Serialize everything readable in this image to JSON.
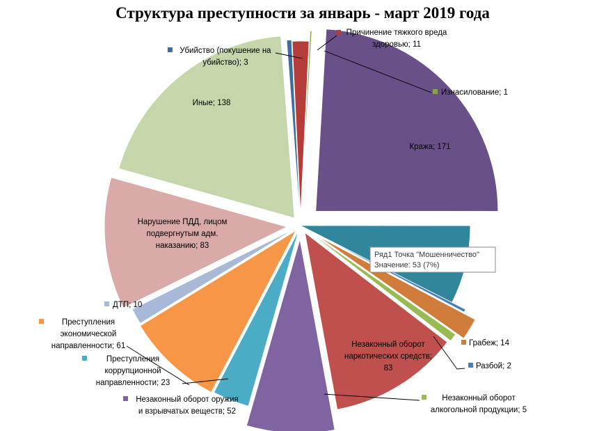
{
  "chart_data": {
    "type": "pie",
    "title": "Структура преступности за январь - март 2019 года",
    "legend": "none",
    "slices": [
      {
        "label": "Убийство (покушение на убийство)",
        "text_lines": [
          "Убийство (покушение  на",
          "убийство); 3"
        ],
        "value": 3,
        "color": "#3f6e9c"
      },
      {
        "label": "Причинение тяжкого вреда здоровью",
        "text_lines": [
          "Причинение  тяжкого вреда",
          "здоровью;  11"
        ],
        "value": 11,
        "color": "#b43d3a"
      },
      {
        "label": "Изнасилование",
        "text_lines": [
          "Изнасилование; 1"
        ],
        "value": 1,
        "color": "#8aa543"
      },
      {
        "label": "Кража",
        "text_lines": [
          "Кража; 171"
        ],
        "value": 171,
        "color": "#6a5088"
      },
      {
        "label": "Мошенничество",
        "text_lines": [],
        "value": 53,
        "color": "#31869b"
      },
      {
        "label": "Разбой",
        "text_lines": [
          "Разбой; 2"
        ],
        "value": 2,
        "color": "#4a7ebb"
      },
      {
        "label": "Грабеж",
        "text_lines": [
          "Грабеж;  14"
        ],
        "value": 14,
        "color": "#d07c3a"
      },
      {
        "label": "Незаконный оборот алкогольной продукции",
        "text_lines": [
          "Незаконный оборот",
          "алкогольной продукции;  5"
        ],
        "value": 5,
        "color": "#98b954"
      },
      {
        "label": "Незаконный оборот наркотических средств",
        "text_lines": [
          "Незаконный оборот",
          "наркотических средств;",
          "83"
        ],
        "value": 83,
        "color": "#c0504d"
      },
      {
        "label": "Незаконный оборот оружия и взрывчатых веществ",
        "text_lines": [
          "Незаконный оборот оружия",
          "и взрывчатых веществ;  52"
        ],
        "value": 52,
        "color": "#8064a2"
      },
      {
        "label": "Преступления коррупционной направленности",
        "text_lines": [
          "Преступления",
          "коррупционной",
          "направленности; 23"
        ],
        "value": 23,
        "color": "#4bacc6"
      },
      {
        "label": "Преступления экономической направленности",
        "text_lines": [
          "Преступления",
          "экономической",
          "направленности; 61"
        ],
        "value": 61,
        "color": "#f79646"
      },
      {
        "label": "ДТП",
        "text_lines": [
          "ДТП;  10"
        ],
        "value": 10,
        "color": "#a8b8d8"
      },
      {
        "label": "Нарушение ПДД, лицом подвергнутым адм. наказанию",
        "text_lines": [
          "Нарушение ПДД, лицом",
          "подвергнутым адм.",
          "наказанию; 83"
        ],
        "value": 83,
        "color": "#d9aaa8"
      },
      {
        "label": "Иные",
        "text_lines": [
          "Иные;  138"
        ],
        "value": 138,
        "color": "#c4d6aa"
      }
    ],
    "tooltip": {
      "line1": "Ряд1 Точка \"Мошенничество\"",
      "line2": "Значение: 53 (7%)"
    }
  }
}
